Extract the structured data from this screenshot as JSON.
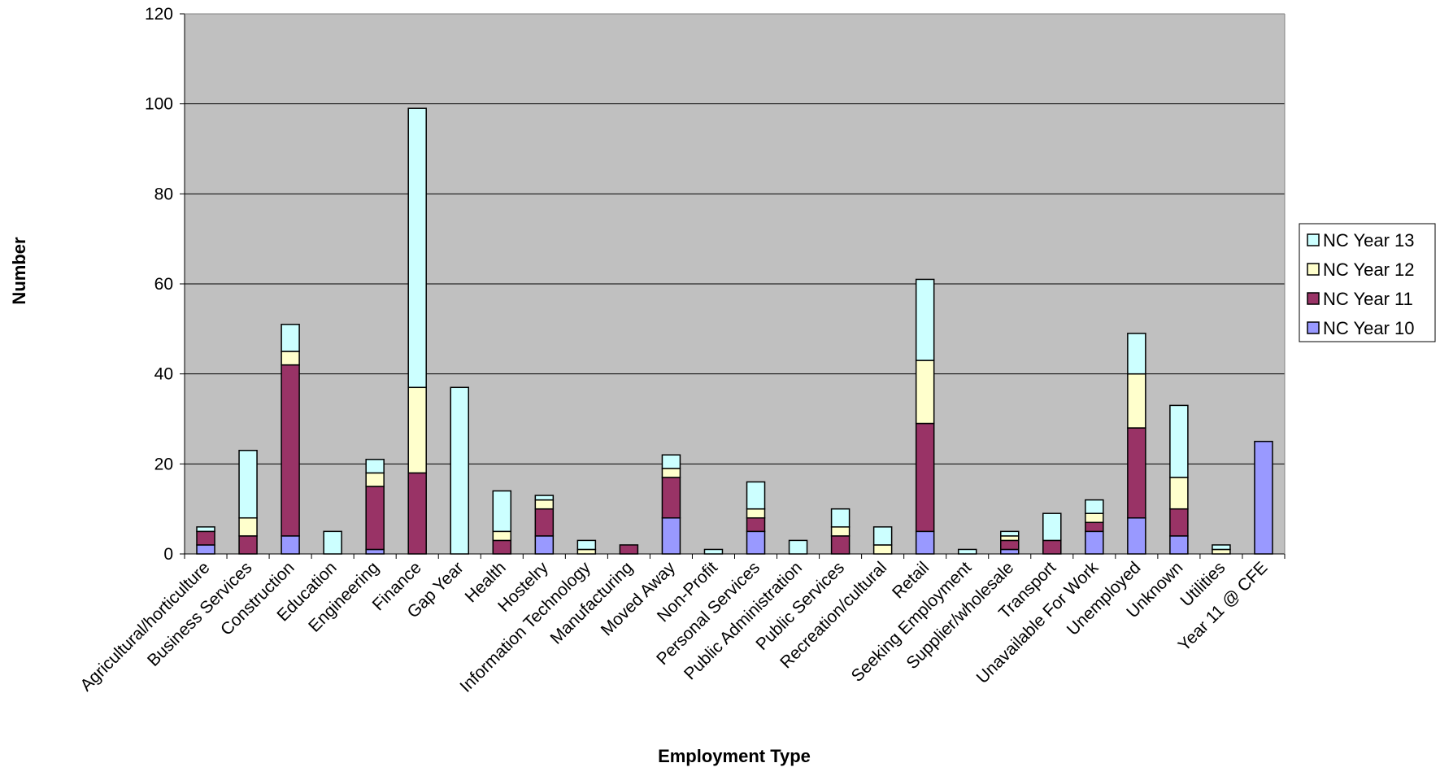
{
  "chart_data": {
    "type": "bar",
    "stacked": true,
    "title": "",
    "xlabel": "Employment Type",
    "ylabel": "Number",
    "ylim": [
      0,
      120
    ],
    "yticks": [
      0,
      20,
      40,
      60,
      80,
      100,
      120
    ],
    "grid": true,
    "legend_position": "right",
    "plot_background": "#c0c0c0",
    "categories": [
      "Agricultural/horticulture",
      "Business Services",
      "Construction",
      "Education",
      "Engineering",
      "Finance",
      "Gap Year",
      "Health",
      "Hostelry",
      "Information Technology",
      "Manufacturing",
      "Moved Away",
      "Non-Profit",
      "Personal Services",
      "Public Administration",
      "Public Services",
      "Recreation/cultural",
      "Retail",
      "Seeking Employment",
      "Supplier/wholesale",
      "Transport",
      "Unavailable For Work",
      "Unemployed",
      "Unknown",
      "Utilities",
      "Year 11 @ CFE"
    ],
    "series": [
      {
        "name": "NC Year 10",
        "color": "#9999ff",
        "values": [
          2,
          0,
          4,
          0,
          1,
          0,
          0,
          0,
          4,
          0,
          0,
          8,
          0,
          5,
          0,
          0,
          0,
          5,
          0,
          1,
          0,
          5,
          8,
          4,
          0,
          25
        ]
      },
      {
        "name": "NC Year 11",
        "color": "#993366",
        "values": [
          3,
          4,
          38,
          0,
          14,
          18,
          0,
          3,
          6,
          0,
          2,
          9,
          0,
          3,
          0,
          4,
          0,
          24,
          0,
          2,
          3,
          2,
          20,
          6,
          0,
          0
        ]
      },
      {
        "name": "NC Year 12",
        "color": "#ffffcc",
        "values": [
          0,
          4,
          3,
          0,
          3,
          19,
          0,
          2,
          2,
          1,
          0,
          2,
          0,
          2,
          0,
          2,
          2,
          14,
          0,
          1,
          0,
          2,
          12,
          7,
          1,
          0
        ]
      },
      {
        "name": "NC Year 13",
        "color": "#ccffff",
        "values": [
          1,
          15,
          6,
          5,
          3,
          62,
          37,
          9,
          1,
          2,
          0,
          3,
          1,
          6,
          3,
          4,
          4,
          18,
          1,
          1,
          6,
          3,
          9,
          16,
          1,
          0
        ]
      }
    ]
  }
}
